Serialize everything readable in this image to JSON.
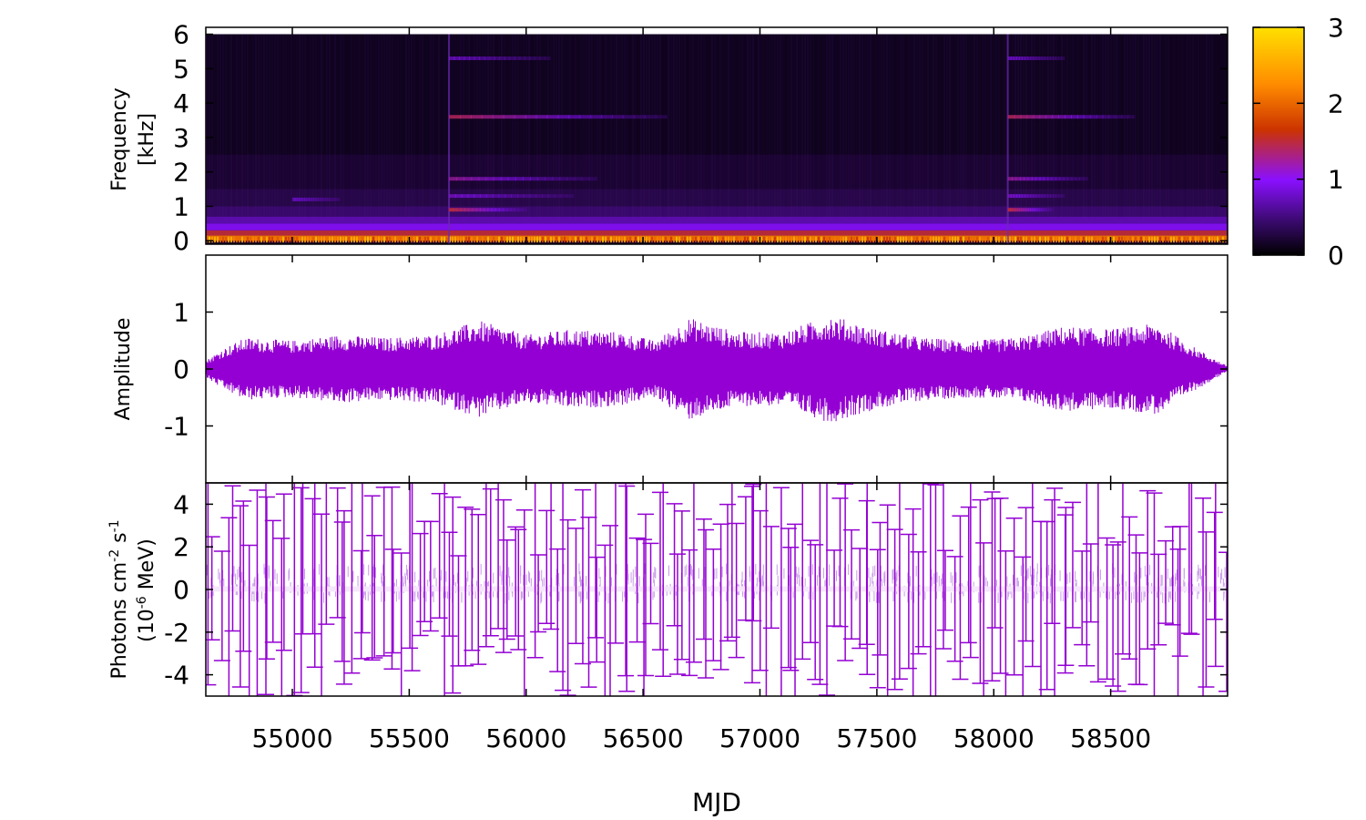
{
  "chart_data": [
    {
      "type": "heatmap",
      "panel": "spectrogram",
      "ylabel": "Frequency",
      "yunit": "[kHz]",
      "ylim": [
        -0.1,
        6.2
      ],
      "yticks": [
        0,
        1,
        2,
        3,
        4,
        5,
        6
      ],
      "xlim": [
        54630,
        59000
      ],
      "y_max": 6.0,
      "colorbar": {
        "range": [
          0,
          3
        ],
        "ticks": [
          0,
          1,
          2,
          3
        ],
        "colors": [
          "#000000",
          "#3a0a6e",
          "#8a10ff",
          "#cc3300",
          "#ff8c00",
          "#ffe000"
        ]
      },
      "segment_starts": [
        54630,
        55670,
        58060
      ],
      "features": [
        {
          "x0": 55670,
          "x1": 56100,
          "freq": 5.3,
          "strength": 0.45
        },
        {
          "x0": 55670,
          "x1": 56600,
          "freq": 3.6,
          "strength": 0.9
        },
        {
          "x0": 55670,
          "x1": 56300,
          "freq": 1.8,
          "strength": 0.7
        },
        {
          "x0": 55670,
          "x1": 56200,
          "freq": 1.3,
          "strength": 0.5
        },
        {
          "x0": 55670,
          "x1": 56000,
          "freq": 0.9,
          "strength": 1.0
        },
        {
          "x0": 58060,
          "x1": 58300,
          "freq": 5.3,
          "strength": 0.45
        },
        {
          "x0": 58060,
          "x1": 58600,
          "freq": 3.6,
          "strength": 0.9
        },
        {
          "x0": 58060,
          "x1": 58400,
          "freq": 1.8,
          "strength": 0.7
        },
        {
          "x0": 58060,
          "x1": 58300,
          "freq": 1.3,
          "strength": 0.5
        },
        {
          "x0": 58060,
          "x1": 58250,
          "freq": 0.9,
          "strength": 1.0
        },
        {
          "x0": 55000,
          "x1": 55200,
          "freq": 1.2,
          "strength": 0.4
        }
      ]
    },
    {
      "type": "line",
      "panel": "amplitude",
      "ylabel": "Amplitude",
      "ylim": [
        -2,
        2
      ],
      "yticks": [
        -1,
        0,
        1
      ],
      "xlim": [
        54630,
        59000
      ],
      "color": "#9400d3",
      "envelope": {
        "x": [
          54630,
          54700,
          54800,
          55000,
          55200,
          55400,
          55600,
          55800,
          56000,
          56200,
          56400,
          56550,
          56700,
          56900,
          57100,
          57300,
          57500,
          57700,
          57900,
          58100,
          58300,
          58500,
          58700,
          58850,
          59000
        ],
        "y": [
          0.15,
          0.35,
          0.55,
          0.5,
          0.6,
          0.55,
          0.6,
          0.85,
          0.6,
          0.7,
          0.65,
          0.5,
          0.9,
          0.65,
          0.65,
          0.95,
          0.7,
          0.55,
          0.5,
          0.55,
          0.75,
          0.7,
          0.8,
          0.4,
          0.05
        ]
      }
    },
    {
      "type": "scatter",
      "panel": "flux",
      "ylabel": "Photons cm",
      "ylabel_sup1": "-2",
      "ylabel_mid": " s",
      "ylabel_sup2": "-1",
      "ylabel2_pre": "(10",
      "ylabel2_sup": "-6",
      "ylabel2_post": " MeV)",
      "ylim": [
        -5,
        5
      ],
      "yticks": [
        -4,
        -2,
        0,
        2,
        4
      ],
      "xlim": [
        54630,
        59000
      ],
      "xticks": [
        55000,
        55500,
        56000,
        56500,
        57000,
        57500,
        58000,
        58500
      ],
      "xlabel": "MJD",
      "color": "#9400d3"
    }
  ]
}
